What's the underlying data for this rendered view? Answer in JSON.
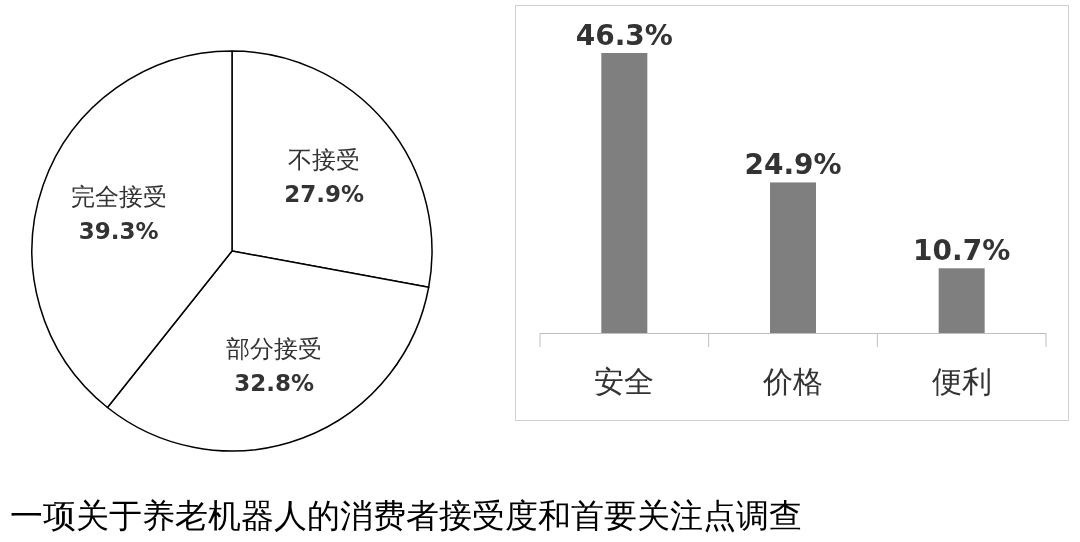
{
  "chart_data": [
    {
      "type": "pie",
      "categories": [
        "不接受",
        "部分接受",
        "完全接受"
      ],
      "values": [
        27.9,
        32.8,
        39.3
      ],
      "value_labels": [
        "27.9%",
        "32.8%",
        "39.3%"
      ],
      "colors": [
        "#ffffff",
        "#ffffff",
        "#ffffff"
      ],
      "annotations": [
        "一项关于养老机器人的消费者接受度和首要关注点调查"
      ]
    },
    {
      "type": "bar",
      "categories": [
        "安全",
        "价格",
        "便利"
      ],
      "values": [
        46.3,
        24.9,
        10.7
      ],
      "value_labels": [
        "46.3%",
        "24.9%",
        "10.7%"
      ],
      "color": "#7f7f7f"
    }
  ]
}
